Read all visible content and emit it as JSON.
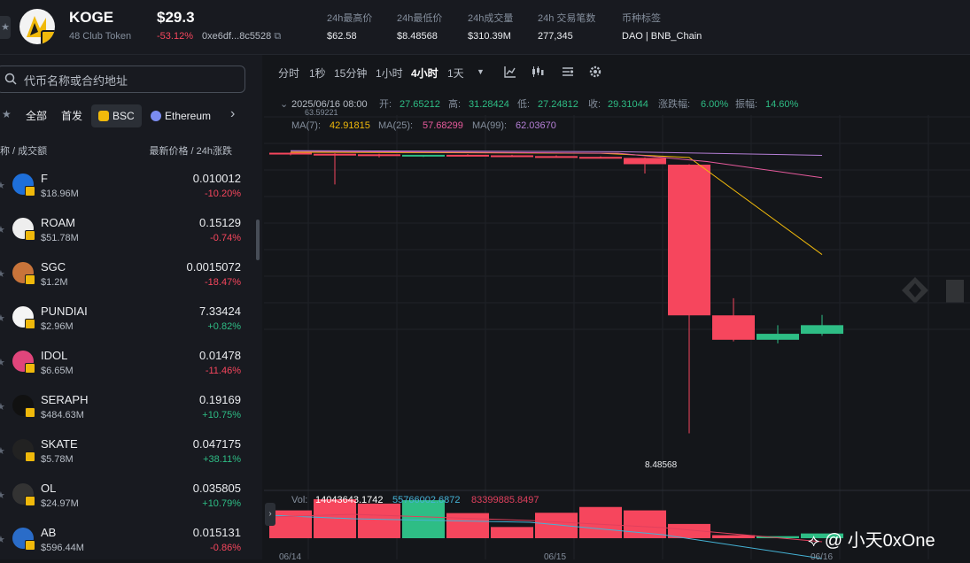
{
  "token": {
    "symbol": "KOGE",
    "name": "48 Club Token",
    "price": "$29.3",
    "change": "-53.12%",
    "address": "0xe6df...8c5528"
  },
  "stats": [
    {
      "label": "24h最高价",
      "value": "$62.58"
    },
    {
      "label": "24h最低价",
      "value": "$8.48568"
    },
    {
      "label": "24h成交量",
      "value": "$310.39M"
    },
    {
      "label": "24h 交易笔数",
      "value": "277,345"
    },
    {
      "label": "币种标签",
      "value": "DAO | BNB_Chain"
    }
  ],
  "search": {
    "placeholder": "代币名称或合约地址"
  },
  "filters": {
    "all": "全部",
    "featured": "首发",
    "chain_bsc": "BSC",
    "chain_eth": "Ethereum"
  },
  "columns": {
    "name": "称 / 成交额",
    "price": "最新价格 / 24h涨跌"
  },
  "tokens": [
    {
      "symbol": "F",
      "volume": "$18.96M",
      "price": "0.010012",
      "change": "-10.20%",
      "up": false,
      "color": "#1e6fd9"
    },
    {
      "symbol": "ROAM",
      "volume": "$51.78M",
      "price": "0.15129",
      "change": "-0.74%",
      "up": false,
      "color": "#eeeeee"
    },
    {
      "symbol": "SGC",
      "volume": "$1.2M",
      "price": "0.0015072",
      "change": "-18.47%",
      "up": false,
      "color": "#c8743a"
    },
    {
      "symbol": "PUNDIAI",
      "volume": "$2.96M",
      "price": "7.33424",
      "change": "+0.82%",
      "up": true,
      "color": "#f5f5f5"
    },
    {
      "symbol": "IDOL",
      "volume": "$6.65M",
      "price": "0.01478",
      "change": "-11.46%",
      "up": false,
      "color": "#e0457b"
    },
    {
      "symbol": "SERAPH",
      "volume": "$484.63M",
      "price": "0.19169",
      "change": "+10.75%",
      "up": true,
      "color": "#111111"
    },
    {
      "symbol": "SKATE",
      "volume": "$5.78M",
      "price": "0.047175",
      "change": "+38.11%",
      "up": true,
      "color": "#222222"
    },
    {
      "symbol": "OL",
      "volume": "$24.97M",
      "price": "0.035805",
      "change": "+10.79%",
      "up": true,
      "color": "#333333"
    },
    {
      "symbol": "AB",
      "volume": "$596.44M",
      "price": "0.015131",
      "change": "-0.86%",
      "up": false,
      "color": "#2a6cc8"
    }
  ],
  "toolbar": {
    "intervals": [
      "分时",
      "1秒",
      "15分钟",
      "1小时",
      "4小时",
      "1天"
    ],
    "active": "4小时"
  },
  "ohlc": {
    "time": "2025/06/16 08:00",
    "open_label": "开:",
    "open": "27.65212",
    "high_label": "高:",
    "high": "31.28424",
    "low_label": "低:",
    "low": "27.24812",
    "close_label": "收:",
    "close": "29.31044",
    "chg_label": "涨跌幅:",
    "chg": "6.00%",
    "amp_label": "振幅:",
    "amp": "14.60%",
    "left_marker": "63.59221"
  },
  "ma": {
    "ma7_label": "MA(7):",
    "ma7": "42.91815",
    "ma25_label": "MA(25):",
    "ma25": "57.68299",
    "ma99_label": "MA(99):",
    "ma99": "62.03670",
    "color_ma7": "#f0b90b",
    "color_ma25": "#e65a9c",
    "color_ma99": "#b57fd6"
  },
  "vol": {
    "label": "Vol:",
    "v": "14043643.1742",
    "ma1": "55766002.6872",
    "ma2": "83399885.8497"
  },
  "low_marker": "8.48568",
  "xaxis": [
    "06/14",
    "06/15",
    "06/16"
  ],
  "colors": {
    "up": "#2ebd85",
    "down": "#f6465d"
  },
  "chart_data": {
    "type": "candlestick",
    "candles": [
      {
        "o": 62.5,
        "h": 62.58,
        "l": 62.0,
        "c": 62.3
      },
      {
        "o": 62.3,
        "h": 62.4,
        "l": 56.4,
        "c": 62.2
      },
      {
        "o": 62.2,
        "h": 62.3,
        "l": 61.6,
        "c": 61.9
      },
      {
        "o": 61.9,
        "h": 62.0,
        "l": 61.7,
        "c": 62.1
      },
      {
        "o": 62.1,
        "h": 62.2,
        "l": 61.9,
        "c": 62.0
      },
      {
        "o": 62.0,
        "h": 62.1,
        "l": 61.8,
        "c": 61.85
      },
      {
        "o": 61.85,
        "h": 62.0,
        "l": 61.6,
        "c": 61.7
      },
      {
        "o": 61.7,
        "h": 61.8,
        "l": 61.4,
        "c": 61.5
      },
      {
        "o": 61.5,
        "h": 61.6,
        "l": 58.5,
        "c": 60.3
      },
      {
        "o": 60.2,
        "h": 60.3,
        "l": 8.48568,
        "c": 31.2
      },
      {
        "o": 31.2,
        "h": 34.5,
        "l": 26.2,
        "c": 26.5
      },
      {
        "o": 26.5,
        "h": 29.3,
        "l": 25.8,
        "c": 27.65
      },
      {
        "o": 27.65212,
        "h": 31.28424,
        "l": 27.24812,
        "c": 29.31044
      }
    ],
    "volume": [
      82,
      115,
      102,
      112,
      74,
      33,
      75,
      92,
      82,
      42,
      9,
      6,
      14
    ],
    "ma7": [
      null,
      null,
      null,
      null,
      null,
      null,
      null,
      null,
      null,
      null,
      null,
      null,
      42.91815
    ],
    "ylim": [
      5,
      66
    ]
  }
}
